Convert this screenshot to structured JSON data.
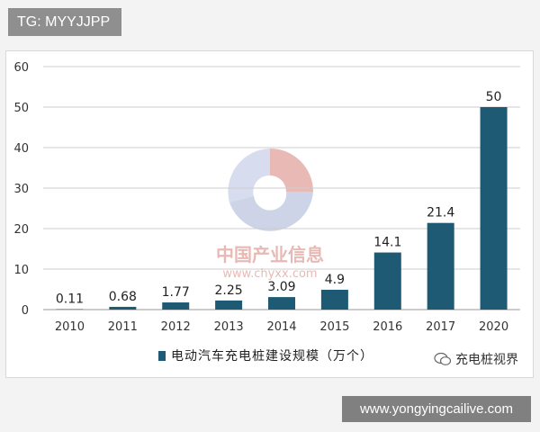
{
  "top_badge": "TG: MYYJJPP",
  "bottom_badge": "www.yongyingcailive.com",
  "wechat_source": "充电桩视界",
  "watermark": {
    "line1": "中国产业信息",
    "line2": "www.chyxx.com",
    "colors": [
      "#c0392b",
      "#8e9bd0",
      "#5a6fb0"
    ]
  },
  "colors": {
    "bar": "#1e5a73",
    "grid": "#cccccc",
    "axis": "#999999"
  },
  "chart_data": {
    "type": "bar",
    "categories": [
      "2010",
      "2011",
      "2012",
      "2013",
      "2014",
      "2015",
      "2016",
      "2017",
      "2020"
    ],
    "values": [
      0.11,
      0.68,
      1.77,
      2.25,
      3.09,
      4.9,
      14.1,
      21.4,
      50
    ],
    "value_labels": [
      "0.11",
      "0.68",
      "1.77",
      "2.25",
      "3.09",
      "4.9",
      "14.1",
      "21.4",
      "50"
    ],
    "title": "",
    "xlabel": "",
    "ylabel": "",
    "ylim": [
      0,
      60
    ],
    "yticks": [
      0,
      10,
      20,
      30,
      40,
      50,
      60
    ],
    "ytick_labels": [
      "0",
      "10",
      "20",
      "30",
      "40",
      "50",
      "60"
    ],
    "grid": true,
    "series": [
      {
        "name": "电动汽车充电桩建设规模（万个）",
        "values": [
          0.11,
          0.68,
          1.77,
          2.25,
          3.09,
          4.9,
          14.1,
          21.4,
          50
        ]
      }
    ],
    "legend_position": "bottom"
  }
}
